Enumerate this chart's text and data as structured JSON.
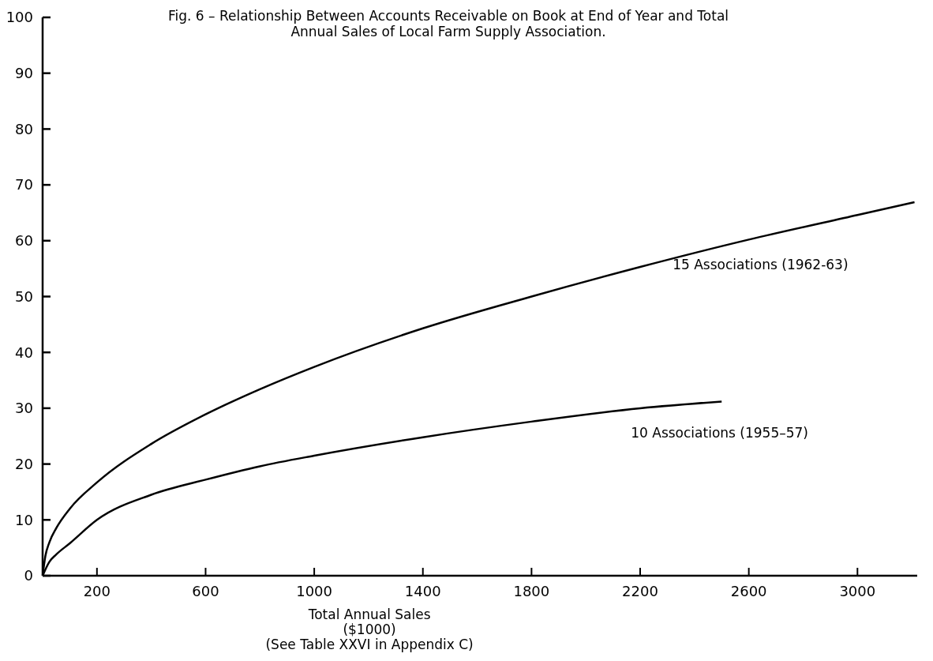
{
  "chart_data": {
    "type": "line",
    "title": "Fig. 6 – Relationship Between Accounts Receivable on Book at End of Year and Total\nAnnual Sales of Local Farm Supply Association.",
    "xlabel": "Total Annual Sales\n($1000)",
    "annotations": [
      "(See Table XXVI in Appendix C)"
    ],
    "xlim": [
      0,
      3220
    ],
    "xticks": [
      200,
      600,
      1000,
      1400,
      1800,
      2200,
      2600,
      3000
    ],
    "ylim": [
      0,
      100
    ],
    "yticks": [
      0,
      10,
      20,
      30,
      40,
      50,
      60,
      70,
      80,
      90,
      100
    ],
    "grid": false,
    "marker": "none",
    "line_style": "solid",
    "series": [
      {
        "name": "15 Associations (1962-63)",
        "color": "#000000",
        "x": [
          0,
          10,
          25,
          50,
          100,
          200,
          400,
          600,
          800,
          1000,
          1400,
          1800,
          2200,
          2600,
          3000,
          3210
        ],
        "values": [
          0,
          3.5,
          6,
          8.5,
          12,
          16.7,
          23.6,
          28.9,
          33.4,
          37.4,
          44.3,
          50,
          55.3,
          60.2,
          64.6,
          66.9
        ]
      },
      {
        "name": "10 Associations (1955–57)",
        "color": "#000000",
        "x": [
          0,
          25,
          50,
          100,
          200,
          400,
          600,
          800,
          1000,
          1400,
          1800,
          2200,
          2500
        ],
        "values": [
          0,
          2.5,
          3.8,
          5.8,
          10,
          14.5,
          17.2,
          19.6,
          21.5,
          24.8,
          27.6,
          30,
          31.2
        ]
      }
    ]
  }
}
